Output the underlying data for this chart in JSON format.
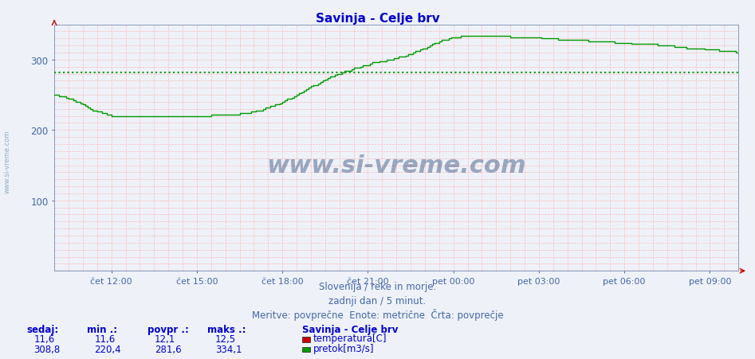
{
  "title": "Savinja - Celje brv",
  "title_color": "#0000cc",
  "title_fontsize": 11,
  "background_color": "#eef2f8",
  "plot_bg_color": "#eef2f8",
  "ylim": [
    0,
    350
  ],
  "yticks": [
    100,
    200,
    300
  ],
  "xlim_pts": [
    0,
    288
  ],
  "xtick_labels": [
    "čet 12:00",
    "čet 15:00",
    "čet 18:00",
    "čet 21:00",
    "pet 00:00",
    "pet 03:00",
    "pet 06:00",
    "pet 09:00"
  ],
  "xtick_positions": [
    24,
    60,
    96,
    132,
    168,
    204,
    240,
    276
  ],
  "grid_color": "#ffaaaa",
  "avg_line_value": 281.6,
  "avg_line_color": "#009900",
  "temp_line_color": "#cc0000",
  "flow_line_color": "#009900",
  "watermark": "www.si-vreme.com",
  "watermark_color": "#1a3a6e",
  "subtitle1": "Slovenija / reke in morje.",
  "subtitle2": "zadnji dan / 5 minut.",
  "subtitle3": "Meritve: povprečne  Enote: metrične  Črta: povprečje",
  "subtitle_color": "#4466aa",
  "legend_title": "Savinja - Celje brv",
  "legend_items": [
    "temperatura[C]",
    "pretok[m3/s]"
  ],
  "legend_colors": [
    "#cc0000",
    "#009900"
  ],
  "stat_headers": [
    "sedaj:",
    "min .:",
    "povpr .:",
    "maks .:"
  ],
  "stat_temp": [
    "11,6",
    "11,6",
    "12,1",
    "12,5"
  ],
  "stat_flow": [
    "308,8",
    "220,4",
    "281,6",
    "334,1"
  ],
  "flow_keypoints": [
    [
      0,
      250
    ],
    [
      4,
      247
    ],
    [
      8,
      242
    ],
    [
      12,
      236
    ],
    [
      16,
      229
    ],
    [
      20,
      224
    ],
    [
      24,
      221
    ],
    [
      28,
      220
    ],
    [
      32,
      220
    ],
    [
      40,
      220
    ],
    [
      50,
      220
    ],
    [
      60,
      220
    ],
    [
      65,
      221
    ],
    [
      70,
      222
    ],
    [
      74,
      222
    ],
    [
      78,
      223
    ],
    [
      82,
      225
    ],
    [
      86,
      228
    ],
    [
      90,
      232
    ],
    [
      94,
      237
    ],
    [
      98,
      243
    ],
    [
      102,
      250
    ],
    [
      106,
      258
    ],
    [
      110,
      265
    ],
    [
      114,
      272
    ],
    [
      118,
      278
    ],
    [
      122,
      283
    ],
    [
      126,
      287
    ],
    [
      130,
      291
    ],
    [
      134,
      295
    ],
    [
      138,
      298
    ],
    [
      142,
      301
    ],
    [
      146,
      304
    ],
    [
      150,
      308
    ],
    [
      154,
      314
    ],
    [
      158,
      320
    ],
    [
      162,
      326
    ],
    [
      166,
      330
    ],
    [
      168,
      332
    ],
    [
      170,
      333
    ],
    [
      172,
      334
    ],
    [
      176,
      334
    ],
    [
      180,
      334
    ],
    [
      184,
      334
    ],
    [
      188,
      334
    ],
    [
      192,
      333
    ],
    [
      196,
      333
    ],
    [
      200,
      332
    ],
    [
      204,
      331
    ],
    [
      208,
      330
    ],
    [
      212,
      329
    ],
    [
      218,
      328
    ],
    [
      224,
      327
    ],
    [
      230,
      326
    ],
    [
      236,
      325
    ],
    [
      242,
      323
    ],
    [
      248,
      322
    ],
    [
      254,
      321
    ],
    [
      260,
      319
    ],
    [
      266,
      317
    ],
    [
      270,
      316
    ],
    [
      276,
      314
    ],
    [
      280,
      313
    ],
    [
      284,
      312
    ],
    [
      288,
      310
    ]
  ]
}
